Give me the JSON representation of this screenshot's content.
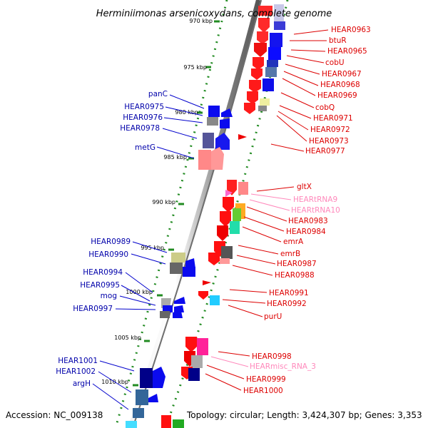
{
  "title": "Herminiimonas arsenicoxydans, complete genome",
  "footer": {
    "accession": "Accession: NC_009138",
    "stats": "Topology: circular; Length: 3,424,307 bp; Genes: 3,353"
  },
  "colors": {
    "forward_label": "#0000aa",
    "reverse_label": "#dd0000",
    "rna_label": "#ff88bb"
  },
  "scale_ticks": [
    "970 kbp",
    "975 kbp",
    "980 kbp",
    "985 kbp",
    "990 kbp",
    "995 kbp",
    "1000 kbp",
    "1005 kbp",
    "1010 kbp"
  ],
  "forward_genes": [
    "panC",
    "HEAR0975",
    "HEAR0976",
    "HEAR0978",
    "metG",
    "HEAR0989",
    "HEAR0990",
    "HEAR0994",
    "HEAR0995",
    "mog",
    "HEAR0997",
    "HEAR1001",
    "HEAR1002",
    "argH"
  ],
  "reverse_genes": [
    "HEAR0963",
    "btuR",
    "HEAR0965",
    "cobU",
    "HEAR0967",
    "HEAR0968",
    "HEAR0969",
    "cobQ",
    "HEAR0971",
    "HEAR0972",
    "HEAR0973",
    "HEAR0977",
    "gltX",
    "HEARtRNA9",
    "HEARtRNA10",
    "HEAR0983",
    "HEAR0984",
    "emrA",
    "emrB",
    "HEAR0987",
    "HEAR0988",
    "HEAR0991",
    "HEAR0992",
    "purU",
    "HEAR0998",
    "HEARmisc_RNA_3",
    "HEAR0999",
    "HEAR1000"
  ],
  "rna_genes": [
    "HEARtRNA9",
    "HEARtRNA10",
    "HEARmisc_RNA_3"
  ]
}
